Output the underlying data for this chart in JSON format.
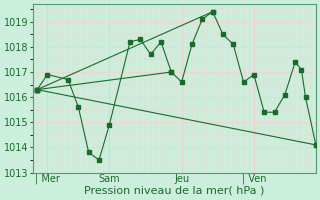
{
  "title": "",
  "xlabel": "Pression niveau de la mer( hPa )",
  "bg_color": "#cceedd",
  "grid_major_color": "#ffcccc",
  "grid_minor_color": "#ffcccc",
  "line_color": "#1a6b2a",
  "marker_color": "#1a6b2a",
  "ylim": [
    1013.0,
    1019.7
  ],
  "yticks": [
    1013,
    1014,
    1015,
    1016,
    1017,
    1018,
    1019
  ],
  "day_labels": [
    "| Mer",
    "Sam",
    "Jeu",
    "| Ven"
  ],
  "day_positions": [
    0.5,
    3.5,
    7.0,
    10.5
  ],
  "xlim": [
    -0.2,
    13.5
  ],
  "series": [
    [
      0,
      1016.3,
      0.5,
      1016.9,
      1.5,
      1016.7,
      2.0,
      1015.6,
      2.5,
      1013.8,
      3.0,
      1013.5,
      3.5,
      1014.9,
      4.5,
      1018.2,
      5.0,
      1018.3,
      5.5,
      1017.7,
      6.0,
      1018.2,
      6.5,
      1017.0,
      7.0,
      1016.6,
      7.5,
      1018.1,
      8.0,
      1019.1,
      8.5,
      1019.4,
      9.0,
      1018.5,
      9.5,
      1018.1,
      10.0,
      1016.6,
      10.5,
      1016.9,
      11.0,
      1015.4,
      11.5,
      1015.4,
      12.0,
      1016.1,
      12.5,
      1017.4,
      12.8,
      1017.1,
      13.0,
      1016.0,
      13.5,
      1014.1
    ],
    [
      0,
      1016.3,
      13.5,
      1014.1
    ],
    [
      0,
      1016.3,
      6.5,
      1017.0
    ],
    [
      0,
      1016.3,
      8.5,
      1019.4
    ]
  ],
  "vlines": [
    0.5,
    3.5,
    7.0,
    10.5
  ],
  "vline_color": "#aaddcc",
  "tick_color": "#1a6b2a",
  "tick_fontsize": 7,
  "xlabel_fontsize": 8
}
